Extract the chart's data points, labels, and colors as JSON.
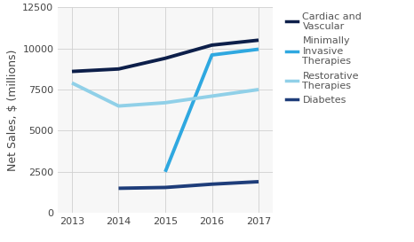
{
  "years": [
    2013,
    2014,
    2015,
    2016,
    2017
  ],
  "series": [
    {
      "name": "Cardiac and\nVascular",
      "values": [
        8600,
        8750,
        9400,
        10200,
        10500
      ],
      "color": "#0d1f4a",
      "linewidth": 2.8
    },
    {
      "name": "Minimally\nInvasive\nTherapies",
      "values": [
        null,
        null,
        2500,
        9600,
        9950
      ],
      "color": "#2fa8e0",
      "linewidth": 2.8
    },
    {
      "name": "Restorative\nTherapies",
      "values": [
        7900,
        6500,
        6700,
        7100,
        7500
      ],
      "color": "#90d0e8",
      "linewidth": 2.8
    },
    {
      "name": "Diabetes",
      "values": [
        null,
        1500,
        1550,
        1750,
        1900
      ],
      "color": "#1e3d7a",
      "linewidth": 2.8
    }
  ],
  "ylabel": "Net Sales, $ (millions)",
  "ylim": [
    0,
    12500
  ],
  "yticks": [
    0,
    2500,
    5000,
    7500,
    10000,
    12500
  ],
  "xlim": [
    2012.7,
    2017.3
  ],
  "grid_color": "#d0d0d0",
  "bg_color": "#ffffff",
  "plot_bg": "#f7f7f7",
  "legend_labels": [
    "Cardiac and\nVascular",
    "Minimally\nInvasive\nTherapies",
    "Restorative\nTherapies",
    "Diabetes"
  ],
  "legend_colors": [
    "#0d1f4a",
    "#2fa8e0",
    "#90d0e8",
    "#1e3d7a"
  ],
  "tick_fontsize": 8,
  "ylabel_fontsize": 9,
  "legend_fontsize": 8
}
